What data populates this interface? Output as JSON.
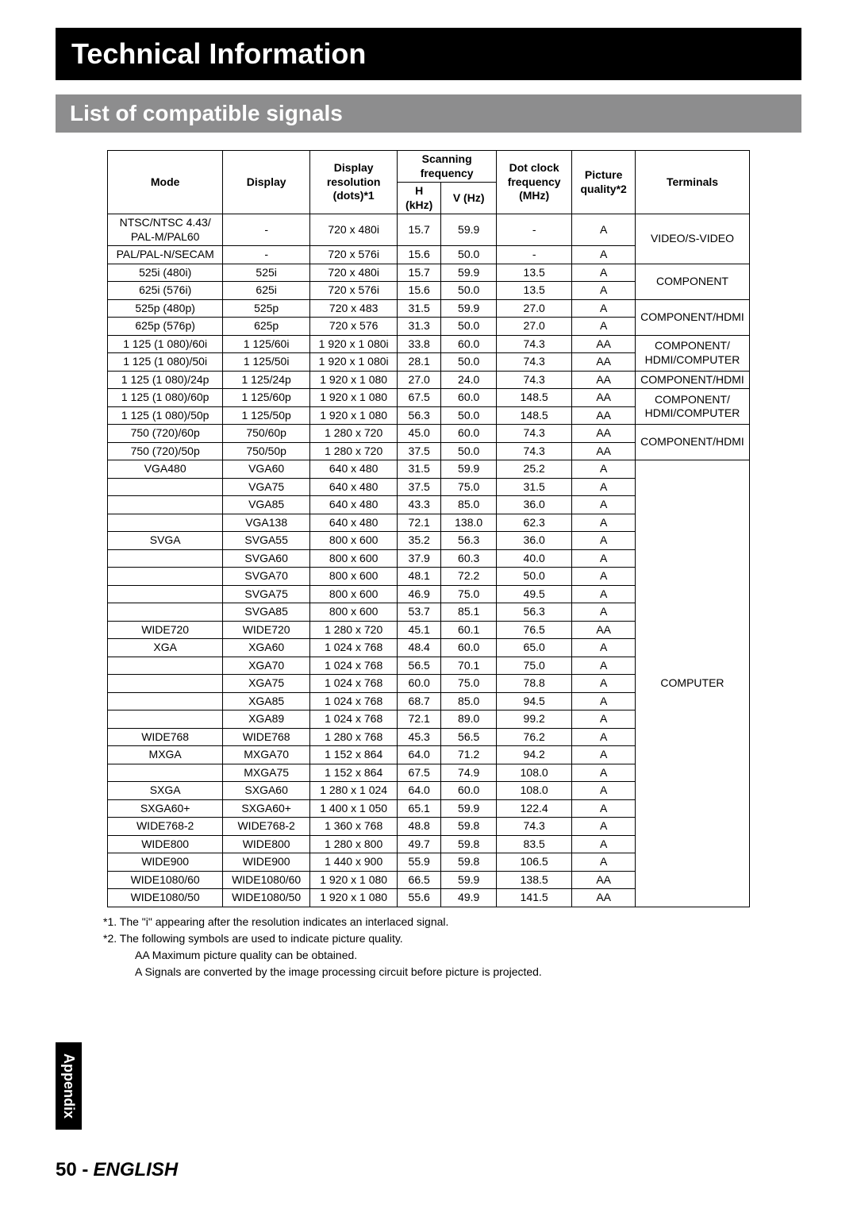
{
  "header": {
    "title": "Technical Information",
    "subtitle": "List of compatible signals"
  },
  "table": {
    "headers": {
      "mode": "Mode",
      "display": "Display",
      "resolution_top": "Display resolution",
      "resolution_bot": "(dots)*1",
      "scanning": "Scanning frequency",
      "h_khz": "H (kHz)",
      "v_hz": "V (Hz)",
      "dotclock_top": "Dot clock frequency",
      "dotclock_bot": "(MHz)",
      "picture_top": "Picture",
      "picture_bot": "quality*2",
      "terminals": "Terminals"
    },
    "rows": [
      {
        "mode": "NTSC/NTSC 4.43/ PAL-M/PAL60",
        "display": "-",
        "res": "720 x 480i",
        "h": "15.7",
        "v": "59.9",
        "dot": "-",
        "pic": "A",
        "term": "VIDEO/S-VIDEO",
        "termspan": 2
      },
      {
        "mode": "PAL/PAL-N/SECAM",
        "display": "-",
        "res": "720 x 576i",
        "h": "15.6",
        "v": "50.0",
        "dot": "-",
        "pic": "A"
      },
      {
        "mode": "525i (480i)",
        "display": "525i",
        "res": "720 x 480i",
        "h": "15.7",
        "v": "59.9",
        "dot": "13.5",
        "pic": "A",
        "term": "COMPONENT",
        "termspan": 2
      },
      {
        "mode": "625i (576i)",
        "display": "625i",
        "res": "720 x 576i",
        "h": "15.6",
        "v": "50.0",
        "dot": "13.5",
        "pic": "A"
      },
      {
        "mode": "525p (480p)",
        "display": "525p",
        "res": "720 x 483",
        "h": "31.5",
        "v": "59.9",
        "dot": "27.0",
        "pic": "A",
        "term": "COMPONENT/HDMI",
        "termspan": 2
      },
      {
        "mode": "625p (576p)",
        "display": "625p",
        "res": "720 x 576",
        "h": "31.3",
        "v": "50.0",
        "dot": "27.0",
        "pic": "A"
      },
      {
        "mode": "1 125 (1 080)/60i",
        "display": "1 125/60i",
        "res": "1 920 x 1 080i",
        "h": "33.8",
        "v": "60.0",
        "dot": "74.3",
        "pic": "AA",
        "term": "COMPONENT/ HDMI/COMPUTER",
        "termspan": 2
      },
      {
        "mode": "1 125 (1 080)/50i",
        "display": "1 125/50i",
        "res": "1 920 x 1 080i",
        "h": "28.1",
        "v": "50.0",
        "dot": "74.3",
        "pic": "AA"
      },
      {
        "mode": "1 125 (1 080)/24p",
        "display": "1 125/24p",
        "res": "1 920 x 1 080",
        "h": "27.0",
        "v": "24.0",
        "dot": "74.3",
        "pic": "AA",
        "term": "COMPONENT/HDMI",
        "termspan": 1
      },
      {
        "mode": "1 125 (1 080)/60p",
        "display": "1 125/60p",
        "res": "1 920 x 1 080",
        "h": "67.5",
        "v": "60.0",
        "dot": "148.5",
        "pic": "AA",
        "term": "COMPONENT/ HDMI/COMPUTER",
        "termspan": 2
      },
      {
        "mode": "1 125 (1 080)/50p",
        "display": "1 125/50p",
        "res": "1 920 x 1 080",
        "h": "56.3",
        "v": "50.0",
        "dot": "148.5",
        "pic": "AA"
      },
      {
        "mode": "750 (720)/60p",
        "display": "750/60p",
        "res": "1 280 x 720",
        "h": "45.0",
        "v": "60.0",
        "dot": "74.3",
        "pic": "AA",
        "term": "COMPONENT/HDMI",
        "termspan": 2
      },
      {
        "mode": "750 (720)/50p",
        "display": "750/50p",
        "res": "1 280 x 720",
        "h": "37.5",
        "v": "50.0",
        "dot": "74.3",
        "pic": "AA"
      },
      {
        "mode": "VGA480",
        "display": "VGA60",
        "res": "640 x 480",
        "h": "31.5",
        "v": "59.9",
        "dot": "25.2",
        "pic": "A",
        "term": "COMPUTER",
        "termspan": 25
      },
      {
        "mode": "",
        "display": "VGA75",
        "res": "640 x 480",
        "h": "37.5",
        "v": "75.0",
        "dot": "31.5",
        "pic": "A"
      },
      {
        "mode": "",
        "display": "VGA85",
        "res": "640 x 480",
        "h": "43.3",
        "v": "85.0",
        "dot": "36.0",
        "pic": "A"
      },
      {
        "mode": "",
        "display": "VGA138",
        "res": "640 x 480",
        "h": "72.1",
        "v": "138.0",
        "dot": "62.3",
        "pic": "A"
      },
      {
        "mode": "SVGA",
        "display": "SVGA55",
        "res": "800 x 600",
        "h": "35.2",
        "v": "56.3",
        "dot": "36.0",
        "pic": "A"
      },
      {
        "mode": "",
        "display": "SVGA60",
        "res": "800 x 600",
        "h": "37.9",
        "v": "60.3",
        "dot": "40.0",
        "pic": "A"
      },
      {
        "mode": "",
        "display": "SVGA70",
        "res": "800 x 600",
        "h": "48.1",
        "v": "72.2",
        "dot": "50.0",
        "pic": "A"
      },
      {
        "mode": "",
        "display": "SVGA75",
        "res": "800 x 600",
        "h": "46.9",
        "v": "75.0",
        "dot": "49.5",
        "pic": "A"
      },
      {
        "mode": "",
        "display": "SVGA85",
        "res": "800 x 600",
        "h": "53.7",
        "v": "85.1",
        "dot": "56.3",
        "pic": "A"
      },
      {
        "mode": "WIDE720",
        "display": "WIDE720",
        "res": "1 280 x 720",
        "h": "45.1",
        "v": "60.1",
        "dot": "76.5",
        "pic": "AA"
      },
      {
        "mode": "XGA",
        "display": "XGA60",
        "res": "1 024 x 768",
        "h": "48.4",
        "v": "60.0",
        "dot": "65.0",
        "pic": "A"
      },
      {
        "mode": "",
        "display": "XGA70",
        "res": "1 024 x 768",
        "h": "56.5",
        "v": "70.1",
        "dot": "75.0",
        "pic": "A"
      },
      {
        "mode": "",
        "display": "XGA75",
        "res": "1 024 x 768",
        "h": "60.0",
        "v": "75.0",
        "dot": "78.8",
        "pic": "A"
      },
      {
        "mode": "",
        "display": "XGA85",
        "res": "1 024 x 768",
        "h": "68.7",
        "v": "85.0",
        "dot": "94.5",
        "pic": "A"
      },
      {
        "mode": "",
        "display": "XGA89",
        "res": "1 024 x 768",
        "h": "72.1",
        "v": "89.0",
        "dot": "99.2",
        "pic": "A"
      },
      {
        "mode": "WIDE768",
        "display": "WIDE768",
        "res": "1 280 x 768",
        "h": "45.3",
        "v": "56.5",
        "dot": "76.2",
        "pic": "A"
      },
      {
        "mode": "MXGA",
        "display": "MXGA70",
        "res": "1 152 x 864",
        "h": "64.0",
        "v": "71.2",
        "dot": "94.2",
        "pic": "A"
      },
      {
        "mode": "",
        "display": "MXGA75",
        "res": "1 152 x 864",
        "h": "67.5",
        "v": "74.9",
        "dot": "108.0",
        "pic": "A"
      },
      {
        "mode": "SXGA",
        "display": "SXGA60",
        "res": "1 280 x 1 024",
        "h": "64.0",
        "v": "60.0",
        "dot": "108.0",
        "pic": "A"
      },
      {
        "mode": "SXGA60+",
        "display": "SXGA60+",
        "res": "1 400 x 1 050",
        "h": "65.1",
        "v": "59.9",
        "dot": "122.4",
        "pic": "A"
      },
      {
        "mode": "WIDE768-2",
        "display": "WIDE768-2",
        "res": "1 360 x 768",
        "h": "48.8",
        "v": "59.8",
        "dot": "74.3",
        "pic": "A"
      },
      {
        "mode": "WIDE800",
        "display": "WIDE800",
        "res": "1 280 x 800",
        "h": "49.7",
        "v": "59.8",
        "dot": "83.5",
        "pic": "A"
      },
      {
        "mode": "WIDE900",
        "display": "WIDE900",
        "res": "1 440 x 900",
        "h": "55.9",
        "v": "59.8",
        "dot": "106.5",
        "pic": "A"
      },
      {
        "mode": "WIDE1080/60",
        "display": "WIDE1080/60",
        "res": "1 920 x 1 080",
        "h": "66.5",
        "v": "59.9",
        "dot": "138.5",
        "pic": "AA"
      },
      {
        "mode": "WIDE1080/50",
        "display": "WIDE1080/50",
        "res": "1 920 x 1 080",
        "h": "55.6",
        "v": "49.9",
        "dot": "141.5",
        "pic": "AA"
      }
    ]
  },
  "footnotes": {
    "f1": "*1.  The \"i\" appearing after the resolution indicates an interlaced signal.",
    "f2": "*2.  The following symbols are used to indicate picture quality.",
    "f2a": "AA    Maximum picture quality can be obtained.",
    "f2b": "A      Signals are converted by the image processing circuit before picture is projected."
  },
  "sidebar": {
    "appendix": "Appendix"
  },
  "footer": {
    "page": "50 -",
    "lang": "ENGLISH"
  }
}
